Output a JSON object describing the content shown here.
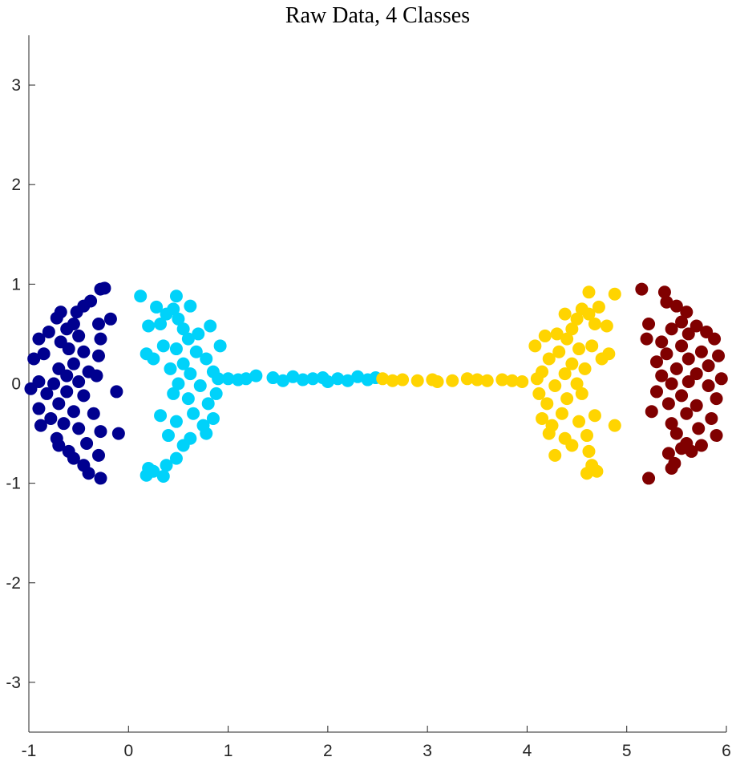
{
  "chart_data": {
    "type": "scatter",
    "title": "Raw Data, 4 Classes",
    "xlim": [
      -1,
      6
    ],
    "ylim": [
      -3.5,
      3.5
    ],
    "xticks": [
      -1,
      0,
      1,
      2,
      3,
      4,
      5,
      6
    ],
    "yticks": [
      -3,
      -2,
      -1,
      0,
      1,
      2,
      3
    ],
    "series": [
      {
        "color": "#00008f",
        "x": [
          -0.28,
          -0.24,
          -0.38,
          -0.45,
          -0.52,
          -0.68,
          -0.72,
          -0.18,
          -0.3,
          -0.55,
          -0.62,
          -0.8,
          -0.9,
          -0.5,
          -0.28,
          -0.68,
          -0.6,
          -0.85,
          -0.45,
          -0.3,
          -0.95,
          -0.55,
          -0.7,
          -0.4,
          -0.62,
          -0.32,
          -0.9,
          -0.75,
          -0.5,
          -0.98,
          -0.62,
          -0.82,
          -0.12,
          -0.45,
          -0.7,
          -0.9,
          -0.55,
          -0.35,
          -0.78,
          -0.65,
          -0.88,
          -0.5,
          -0.28,
          -0.1,
          -0.72,
          -0.42,
          -0.6,
          -0.3,
          -0.55,
          -0.45,
          -0.4,
          -0.28,
          -0.7
        ],
        "values": [
          0.95,
          0.96,
          0.83,
          0.78,
          0.72,
          0.72,
          0.66,
          0.65,
          0.6,
          0.6,
          0.55,
          0.52,
          0.45,
          0.48,
          0.45,
          0.42,
          0.35,
          0.3,
          0.32,
          0.28,
          0.25,
          0.2,
          0.15,
          0.12,
          0.08,
          0.08,
          0.02,
          0.0,
          0.02,
          -0.05,
          -0.08,
          -0.1,
          -0.08,
          -0.12,
          -0.2,
          -0.25,
          -0.28,
          -0.3,
          -0.35,
          -0.4,
          -0.42,
          -0.45,
          -0.48,
          -0.5,
          -0.55,
          -0.6,
          -0.68,
          -0.72,
          -0.75,
          -0.82,
          -0.9,
          -0.95,
          -0.62
        ]
      },
      {
        "color": "#00d2fa",
        "x": [
          0.12,
          0.48,
          0.28,
          0.45,
          0.62,
          0.38,
          0.5,
          0.2,
          0.32,
          0.55,
          0.82,
          0.7,
          0.6,
          0.92,
          0.35,
          0.48,
          0.68,
          0.18,
          0.25,
          0.78,
          0.55,
          0.42,
          0.85,
          0.62,
          0.9,
          0.5,
          0.72,
          0.45,
          0.88,
          0.6,
          0.8,
          0.32,
          0.65,
          0.85,
          0.48,
          0.75,
          0.4,
          0.62,
          0.78,
          0.55,
          0.48,
          0.38,
          0.2,
          0.18,
          0.35,
          0.25,
          1.0,
          1.1,
          1.18,
          1.28,
          1.45,
          1.55,
          1.65,
          1.75,
          1.85,
          1.95,
          2.0,
          2.1,
          2.2,
          2.3,
          2.4,
          2.48
        ],
        "values": [
          0.88,
          0.88,
          0.77,
          0.75,
          0.78,
          0.7,
          0.65,
          0.58,
          0.6,
          0.55,
          0.58,
          0.5,
          0.45,
          0.38,
          0.38,
          0.35,
          0.32,
          0.3,
          0.25,
          0.25,
          0.2,
          0.15,
          0.12,
          0.1,
          0.05,
          0.0,
          -0.02,
          -0.1,
          -0.1,
          -0.15,
          -0.2,
          -0.32,
          -0.3,
          -0.35,
          -0.38,
          -0.42,
          -0.52,
          -0.55,
          -0.5,
          -0.62,
          -0.75,
          -0.82,
          -0.85,
          -0.92,
          -0.93,
          -0.88,
          0.05,
          0.04,
          0.05,
          0.08,
          0.06,
          0.03,
          0.07,
          0.04,
          0.05,
          0.06,
          0.02,
          0.05,
          0.03,
          0.07,
          0.04,
          0.06
        ]
      },
      {
        "color": "#ffd400",
        "x": [
          2.55,
          2.65,
          2.75,
          2.9,
          3.05,
          3.1,
          3.25,
          3.4,
          3.5,
          3.6,
          3.75,
          3.85,
          3.95,
          4.88,
          4.62,
          4.72,
          4.55,
          4.38,
          4.62,
          4.5,
          4.8,
          4.68,
          4.45,
          4.18,
          4.3,
          4.4,
          4.08,
          4.65,
          4.52,
          4.32,
          4.82,
          4.75,
          4.22,
          4.45,
          4.58,
          4.15,
          4.38,
          4.1,
          4.5,
          4.28,
          4.55,
          4.12,
          4.4,
          4.2,
          4.68,
          4.35,
          4.15,
          4.52,
          4.25,
          4.88,
          4.6,
          4.38,
          4.22,
          4.45,
          4.62,
          4.65,
          4.6,
          4.7,
          4.28
        ],
        "values": [
          0.05,
          0.03,
          0.04,
          0.03,
          0.04,
          0.02,
          0.03,
          0.05,
          0.04,
          0.03,
          0.04,
          0.03,
          0.02,
          0.9,
          0.92,
          0.77,
          0.75,
          0.7,
          0.7,
          0.65,
          0.58,
          0.6,
          0.55,
          0.48,
          0.5,
          0.45,
          0.38,
          0.38,
          0.35,
          0.32,
          0.3,
          0.25,
          0.25,
          0.2,
          0.15,
          0.12,
          0.1,
          0.05,
          0.0,
          -0.02,
          -0.1,
          -0.1,
          -0.15,
          -0.2,
          -0.32,
          -0.3,
          -0.35,
          -0.38,
          -0.42,
          -0.42,
          -0.52,
          -0.55,
          -0.5,
          -0.62,
          -0.68,
          -0.82,
          -0.9,
          -0.88,
          -0.72
        ]
      },
      {
        "color": "#800000",
        "x": [
          5.15,
          5.38,
          5.4,
          5.5,
          5.6,
          5.55,
          5.22,
          5.7,
          5.45,
          5.62,
          5.8,
          5.2,
          5.35,
          5.88,
          5.55,
          5.75,
          5.4,
          5.92,
          5.62,
          5.3,
          5.82,
          5.5,
          5.35,
          5.7,
          5.95,
          5.45,
          5.62,
          5.82,
          5.3,
          5.55,
          5.9,
          5.42,
          5.7,
          5.25,
          5.6,
          5.85,
          5.45,
          5.72,
          5.5,
          5.9,
          5.6,
          5.75,
          5.42,
          5.65,
          5.48,
          5.45,
          5.22,
          5.55
        ],
        "values": [
          0.95,
          0.92,
          0.82,
          0.78,
          0.72,
          0.62,
          0.6,
          0.58,
          0.55,
          0.5,
          0.52,
          0.45,
          0.42,
          0.45,
          0.38,
          0.32,
          0.3,
          0.28,
          0.25,
          0.22,
          0.18,
          0.15,
          0.08,
          0.1,
          0.05,
          0.0,
          0.02,
          -0.02,
          -0.08,
          -0.12,
          -0.15,
          -0.2,
          -0.22,
          -0.28,
          -0.3,
          -0.35,
          -0.4,
          -0.45,
          -0.5,
          -0.52,
          -0.6,
          -0.62,
          -0.7,
          -0.68,
          -0.8,
          -0.85,
          -0.95,
          -0.65
        ]
      }
    ]
  }
}
